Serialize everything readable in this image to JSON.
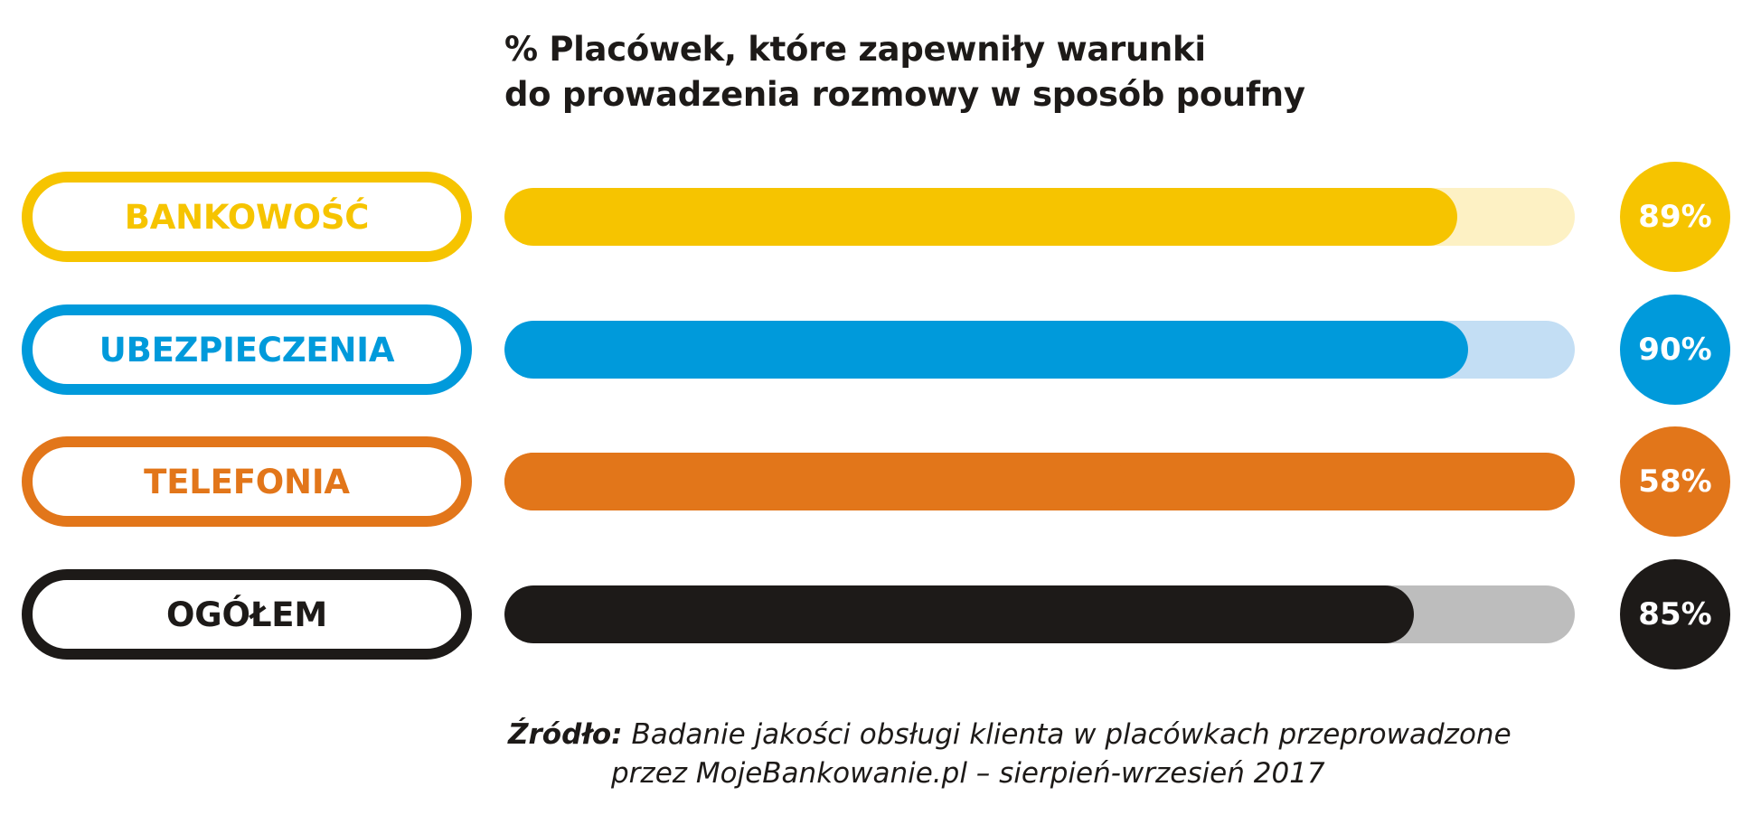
{
  "chart_data": {
    "type": "bar",
    "orientation": "horizontal",
    "title_lines": [
      "% Placówek, które zapewniły warunki",
      "do prowadzenia rozmowy w sposób poufny"
    ],
    "categories": [
      "BANKOWOŚĆ",
      "UBEZPIECZENIA",
      "TELEFONIA",
      "OGÓŁEM"
    ],
    "values": [
      89,
      90,
      58,
      85
    ],
    "value_labels": [
      "89%",
      "90%",
      "58%",
      "85%"
    ],
    "xlim": [
      0,
      100
    ],
    "unit": "%",
    "colors": [
      "#f6c400",
      "#009adb",
      "#e2761a",
      "#1d1a18"
    ],
    "track_colors": [
      "#fdf1c4",
      "#c3def4",
      "#e2761a",
      "#bdbdbd"
    ],
    "grid": false,
    "legend": "none"
  },
  "source": {
    "label": "Źródło:",
    "line1": "Badanie jakości obsługi klienta w placówkach przeprowadzone",
    "line2": "przez MojeBankowanie.pl – sierpień-wrzesień 2017"
  }
}
